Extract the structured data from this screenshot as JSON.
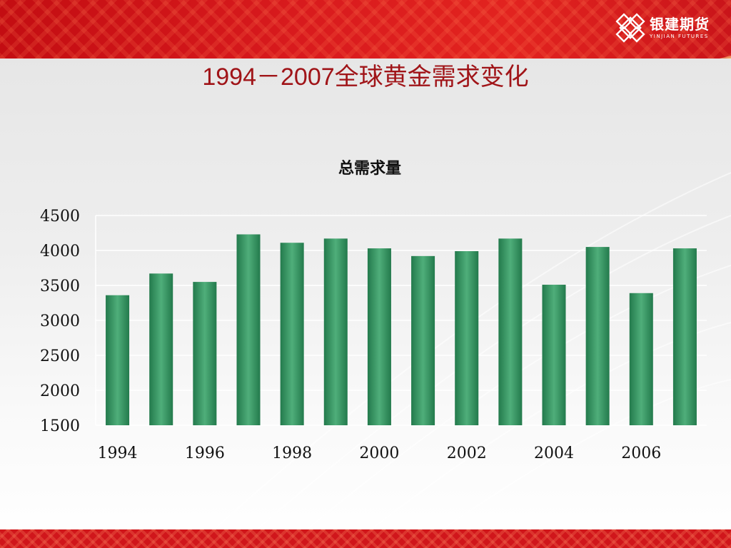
{
  "slide": {
    "title": "1994－2007全球黄金需求变化"
  },
  "logo": {
    "name_cn": "银建期货",
    "name_en": "YINJIAN FUTURES"
  },
  "colors": {
    "bar": "#237a4c",
    "bar_highlight": "#4fae7a",
    "title": "#a01418",
    "brand_red": "#d81a1d"
  },
  "chart_data": {
    "type": "bar",
    "title": "总需求量",
    "xlabel": "",
    "ylabel": "",
    "categories": [
      "1994",
      "1995",
      "1996",
      "1997",
      "1998",
      "1999",
      "2000",
      "2001",
      "2002",
      "2003",
      "2004",
      "2005",
      "2006",
      "2007"
    ],
    "x_tick_labels": [
      "1994",
      "1996",
      "1998",
      "2000",
      "2002",
      "2004",
      "2006"
    ],
    "values": [
      3360,
      3670,
      3550,
      4230,
      4110,
      4170,
      4030,
      3920,
      3990,
      4170,
      3510,
      4050,
      3390,
      4030
    ],
    "ylim": [
      1500,
      4500
    ],
    "y_ticks": [
      1500,
      2000,
      2500,
      3000,
      3500,
      4000,
      4500
    ],
    "grid": true,
    "legend": "none"
  }
}
